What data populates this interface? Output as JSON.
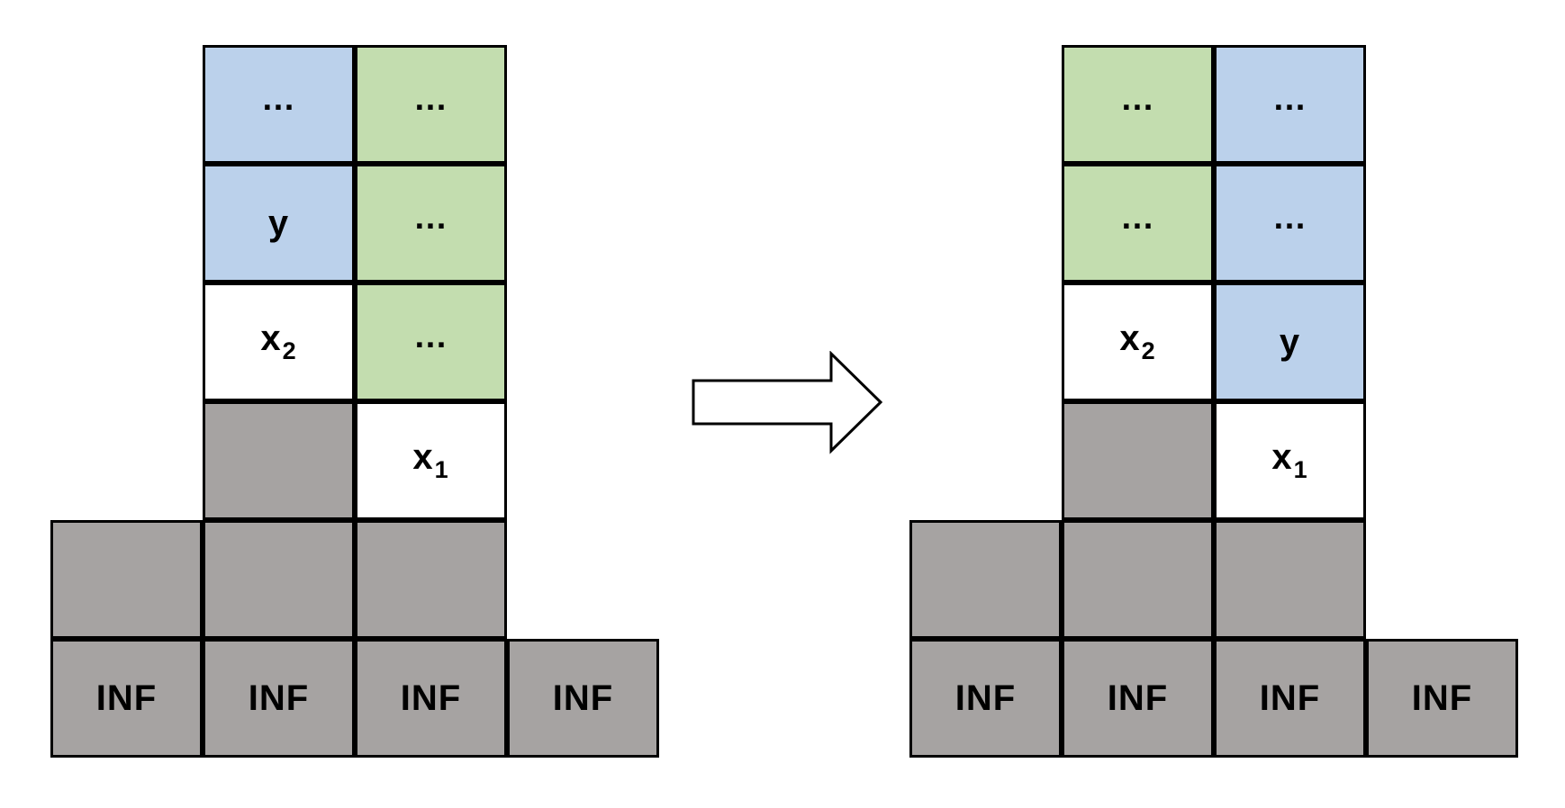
{
  "colors": {
    "blue": "#bbd1eb",
    "green": "#c3ddaf",
    "gray": "#a6a3a2",
    "white": "#ffffff",
    "border": "#000000"
  },
  "arrow_icon": "right-arrow-icon",
  "diagrams": [
    {
      "id": "before",
      "cells": [
        {
          "col": 1,
          "row": 0,
          "fill": "blue",
          "text": "…",
          "sub": ""
        },
        {
          "col": 2,
          "row": 0,
          "fill": "green",
          "text": "…",
          "sub": ""
        },
        {
          "col": 1,
          "row": 1,
          "fill": "blue",
          "text": "y",
          "sub": ""
        },
        {
          "col": 2,
          "row": 1,
          "fill": "green",
          "text": "…",
          "sub": ""
        },
        {
          "col": 1,
          "row": 2,
          "fill": "white",
          "text": "x",
          "sub": "2"
        },
        {
          "col": 2,
          "row": 2,
          "fill": "green",
          "text": "…",
          "sub": ""
        },
        {
          "col": 1,
          "row": 3,
          "fill": "gray",
          "text": "",
          "sub": ""
        },
        {
          "col": 2,
          "row": 3,
          "fill": "white",
          "text": "x",
          "sub": "1"
        },
        {
          "col": 0,
          "row": 4,
          "fill": "gray",
          "text": "",
          "sub": ""
        },
        {
          "col": 1,
          "row": 4,
          "fill": "gray",
          "text": "",
          "sub": ""
        },
        {
          "col": 2,
          "row": 4,
          "fill": "gray",
          "text": "",
          "sub": ""
        },
        {
          "col": 0,
          "row": 5,
          "fill": "gray",
          "text": "INF",
          "sub": ""
        },
        {
          "col": 1,
          "row": 5,
          "fill": "gray",
          "text": "INF",
          "sub": ""
        },
        {
          "col": 2,
          "row": 5,
          "fill": "gray",
          "text": "INF",
          "sub": ""
        },
        {
          "col": 3,
          "row": 5,
          "fill": "gray",
          "text": "INF",
          "sub": ""
        }
      ]
    },
    {
      "id": "after",
      "cells": [
        {
          "col": 1,
          "row": 0,
          "fill": "green",
          "text": "…",
          "sub": ""
        },
        {
          "col": 2,
          "row": 0,
          "fill": "blue",
          "text": "…",
          "sub": ""
        },
        {
          "col": 1,
          "row": 1,
          "fill": "green",
          "text": "…",
          "sub": ""
        },
        {
          "col": 2,
          "row": 1,
          "fill": "blue",
          "text": "…",
          "sub": ""
        },
        {
          "col": 1,
          "row": 2,
          "fill": "white",
          "text": "x",
          "sub": "2"
        },
        {
          "col": 2,
          "row": 2,
          "fill": "blue",
          "text": "y",
          "sub": ""
        },
        {
          "col": 1,
          "row": 3,
          "fill": "gray",
          "text": "",
          "sub": ""
        },
        {
          "col": 2,
          "row": 3,
          "fill": "white",
          "text": "x",
          "sub": "1"
        },
        {
          "col": 0,
          "row": 4,
          "fill": "gray",
          "text": "",
          "sub": ""
        },
        {
          "col": 1,
          "row": 4,
          "fill": "gray",
          "text": "",
          "sub": ""
        },
        {
          "col": 2,
          "row": 4,
          "fill": "gray",
          "text": "",
          "sub": ""
        },
        {
          "col": 0,
          "row": 5,
          "fill": "gray",
          "text": "INF",
          "sub": ""
        },
        {
          "col": 1,
          "row": 5,
          "fill": "gray",
          "text": "INF",
          "sub": ""
        },
        {
          "col": 2,
          "row": 5,
          "fill": "gray",
          "text": "INF",
          "sub": ""
        },
        {
          "col": 3,
          "row": 5,
          "fill": "gray",
          "text": "INF",
          "sub": ""
        }
      ]
    }
  ]
}
